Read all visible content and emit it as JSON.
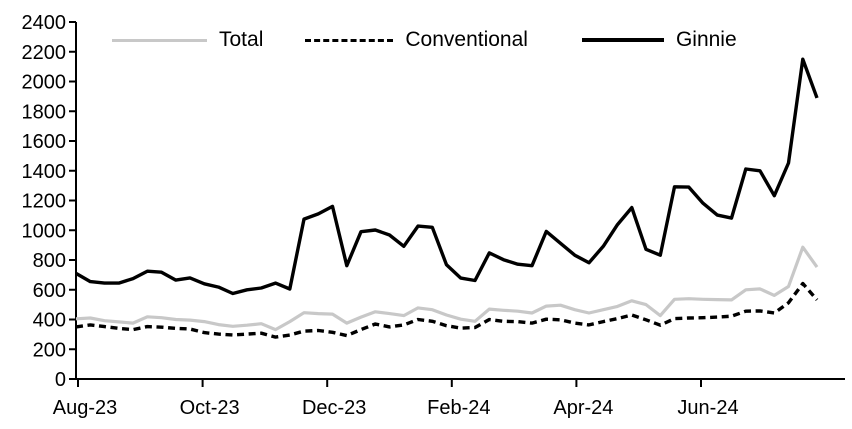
{
  "chart_data": {
    "type": "line",
    "title": "",
    "xlabel": "",
    "ylabel": "",
    "ylim": [
      0,
      2400
    ],
    "y_ticks": [
      0,
      200,
      400,
      600,
      800,
      1000,
      1200,
      1400,
      1600,
      1800,
      2000,
      2200,
      2400
    ],
    "x_tick_labels": [
      "Aug-23",
      "Oct-23",
      "Dec-23",
      "Feb-24",
      "Apr-24",
      "Jun-24"
    ],
    "x_frequency": "weekly",
    "grid": "off",
    "legend_position": "top",
    "axis_color": "#000000",
    "series": [
      {
        "name": "Total",
        "color": "#c8c8c8",
        "line_style": "solid",
        "values": [
          405,
          410,
          392,
          384,
          376,
          418,
          412,
          400,
          396,
          386,
          366,
          354,
          362,
          372,
          332,
          386,
          446,
          440,
          436,
          376,
          416,
          452,
          440,
          426,
          478,
          466,
          430,
          402,
          388,
          470,
          462,
          456,
          444,
          490,
          496,
          466,
          444,
          466,
          488,
          526,
          500,
          426,
          536,
          540,
          536,
          534,
          532,
          600,
          606,
          562,
          622,
          886,
          752
        ]
      },
      {
        "name": "Conventional",
        "color": "#000000",
        "line_style": "dashed",
        "values": [
          350,
          364,
          352,
          340,
          332,
          352,
          348,
          340,
          336,
          312,
          302,
          296,
          302,
          308,
          282,
          296,
          322,
          326,
          314,
          292,
          332,
          370,
          350,
          364,
          400,
          388,
          358,
          342,
          346,
          400,
          388,
          386,
          376,
          402,
          398,
          376,
          364,
          386,
          406,
          430,
          398,
          362,
          406,
          410,
          412,
          416,
          422,
          456,
          458,
          444,
          512,
          642,
          532
        ]
      },
      {
        "name": "Ginnie",
        "color": "#000000",
        "line_style": "solid",
        "values": [
          710,
          655,
          645,
          645,
          675,
          725,
          718,
          665,
          680,
          640,
          618,
          575,
          600,
          612,
          645,
          605,
          1075,
          1110,
          1160,
          762,
          990,
          1002,
          968,
          892,
          1028,
          1020,
          768,
          678,
          662,
          848,
          802,
          772,
          762,
          992,
          912,
          832,
          782,
          892,
          1038,
          1152,
          872,
          832,
          1292,
          1290,
          1182,
          1102,
          1082,
          1412,
          1400,
          1232,
          1452,
          2150,
          1890
        ]
      }
    ]
  }
}
